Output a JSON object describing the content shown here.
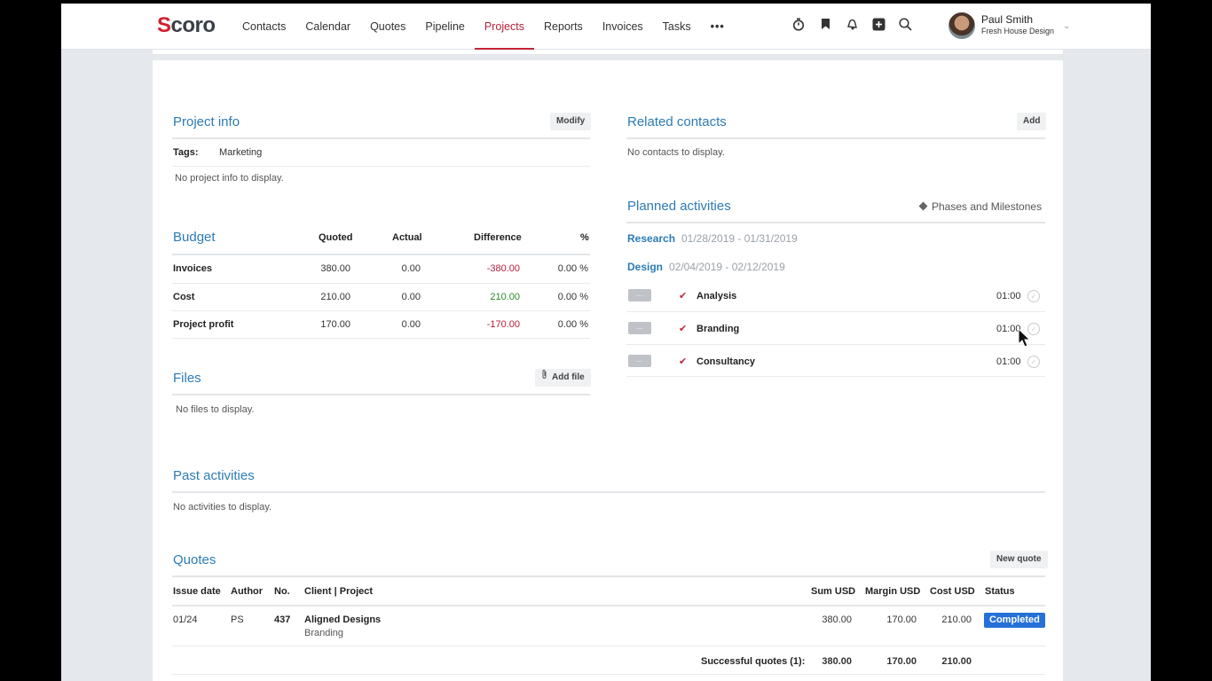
{
  "nav": {
    "logo": "Scoro",
    "items": [
      "Contacts",
      "Calendar",
      "Quotes",
      "Pipeline",
      "Projects",
      "Reports",
      "Invoices",
      "Tasks"
    ],
    "active": "Projects",
    "more": "•••",
    "tools": [
      "timer-icon",
      "bookmark-icon",
      "bell-icon",
      "add-icon",
      "search-icon"
    ]
  },
  "user": {
    "name": "Paul Smith",
    "company": "Fresh House Design"
  },
  "project_info": {
    "title": "Project info",
    "modify": "Modify",
    "tags_label": "Tags:",
    "tags_value": "Marketing",
    "empty": "No project info to display."
  },
  "budget": {
    "title": "Budget",
    "columns": [
      "Quoted",
      "Actual",
      "Difference",
      "%"
    ],
    "rows": [
      {
        "label": "Invoices",
        "quoted": "380.00",
        "actual": "0.00",
        "difference": "-380.00",
        "percent": "0.00 %"
      },
      {
        "label": "Cost",
        "quoted": "210.00",
        "actual": "0.00",
        "difference": "210.00",
        "percent": "0.00 %"
      },
      {
        "label": "Project profit",
        "quoted": "170.00",
        "actual": "0.00",
        "difference": "-170.00",
        "percent": "0.00 %"
      }
    ]
  },
  "files": {
    "title": "Files",
    "add": "Add file",
    "empty": "No files to display."
  },
  "related_contacts": {
    "title": "Related contacts",
    "add": "Add",
    "empty": "No contacts to display."
  },
  "planned": {
    "title": "Planned activities",
    "phases_link": "Phases and Milestones",
    "phases": [
      {
        "name": "Research",
        "dates": "01/28/2019 - 01/31/2019"
      },
      {
        "name": "Design",
        "dates": "02/04/2019 - 02/12/2019"
      }
    ],
    "activities": [
      {
        "name": "Analysis",
        "time": "01:00"
      },
      {
        "name": "Branding",
        "time": "01:00"
      },
      {
        "name": "Consultancy",
        "time": "01:00"
      }
    ],
    "dots": "..."
  },
  "past": {
    "title": "Past activities",
    "empty": "No activities to display."
  },
  "quotes": {
    "title": "Quotes",
    "new": "New quote",
    "columns": [
      "Issue date",
      "Author",
      "No.",
      "Client | Project",
      "Sum USD",
      "Margin USD",
      "Cost USD",
      "Status"
    ],
    "rows": [
      {
        "date": "01/24",
        "author": "PS",
        "no": "437",
        "client": "Aligned Designs",
        "project": "Branding",
        "sum": "380.00",
        "margin": "170.00",
        "cost": "210.00",
        "status": "Completed"
      }
    ],
    "summary": {
      "label": "Successful quotes (1):",
      "sum": "380.00",
      "margin": "170.00",
      "cost": "210.00"
    }
  }
}
